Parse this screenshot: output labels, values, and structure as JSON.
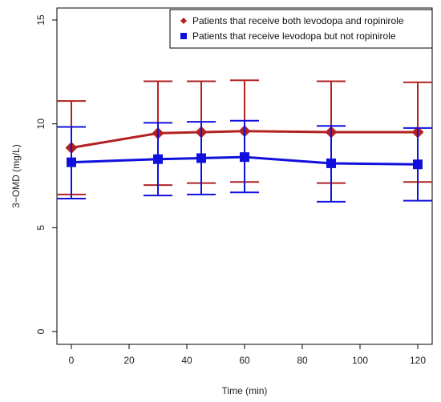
{
  "chart_data": {
    "type": "line",
    "title": "",
    "xlabel": "Time (min)",
    "ylabel": "3−OMD (mg/L)",
    "xlim": [
      -5,
      125
    ],
    "ylim": [
      0,
      15
    ],
    "x_ticks": [
      "0",
      "20",
      "40",
      "60",
      "80",
      "100",
      "120"
    ],
    "y_ticks": [
      "0",
      "5",
      "10",
      "15"
    ],
    "grid": false,
    "legend_position": "top-right",
    "x": [
      0,
      30,
      45,
      60,
      90,
      120
    ],
    "series": [
      {
        "name": "Patients that receive both levodopa and ropinirole",
        "color": "#b22222",
        "marker": "diamond",
        "values": [
          8.85,
          9.55,
          9.6,
          9.65,
          9.6,
          9.6
        ],
        "err_upper": [
          11.1,
          12.05,
          12.05,
          12.1,
          12.05,
          12.0
        ],
        "err_lower": [
          6.6,
          7.05,
          7.15,
          7.2,
          7.15,
          7.2
        ]
      },
      {
        "name": "Patients that receive levodopa but not ropinirole",
        "color": "#1010dd",
        "marker": "square",
        "values": [
          8.15,
          8.3,
          8.35,
          8.4,
          8.1,
          8.05
        ],
        "err_upper": [
          9.85,
          10.05,
          10.1,
          10.15,
          9.9,
          9.8
        ],
        "err_lower": [
          6.4,
          6.55,
          6.6,
          6.7,
          6.25,
          6.3
        ]
      }
    ]
  }
}
